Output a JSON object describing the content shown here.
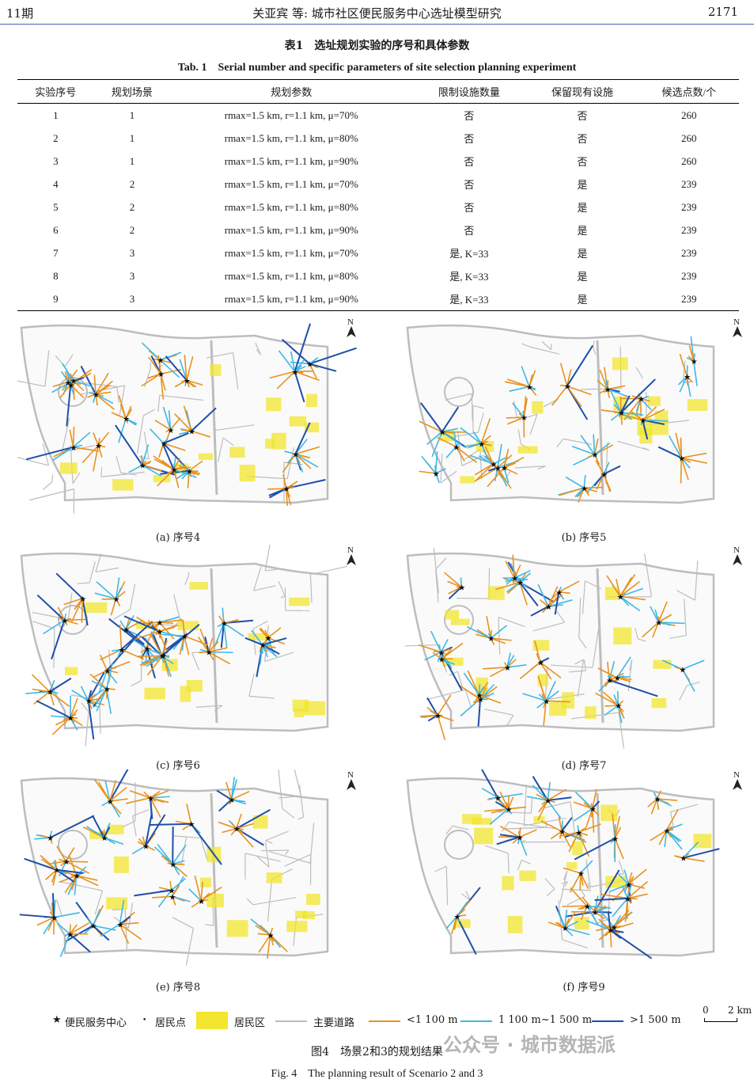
{
  "header": {
    "issue": "11期",
    "title": "关亚宾 等: 城市社区便民服务中心选址模型研究",
    "page": "2171"
  },
  "table": {
    "caption_zh": "表1　选址规划实验的序号和具体参数",
    "caption_en": "Tab. 1　Serial number and specific parameters of site selection planning experiment",
    "headers": [
      "实验序号",
      "规划场景",
      "规划参数",
      "限制设施数量",
      "保留现有设施",
      "候选点数/个"
    ],
    "rows": [
      {
        "id": "1",
        "scene": "1",
        "params": "rmax=1.5 km, r=1.1 km, μ=70%",
        "limit": "否",
        "keep": "否",
        "count": "260"
      },
      {
        "id": "2",
        "scene": "1",
        "params": "rmax=1.5 km, r=1.1 km, μ=80%",
        "limit": "否",
        "keep": "否",
        "count": "260"
      },
      {
        "id": "3",
        "scene": "1",
        "params": "rmax=1.5 km, r=1.1 km, μ=90%",
        "limit": "否",
        "keep": "否",
        "count": "260"
      },
      {
        "id": "4",
        "scene": "2",
        "params": "rmax=1.5 km, r=1.1 km, μ=70%",
        "limit": "否",
        "keep": "是",
        "count": "239"
      },
      {
        "id": "5",
        "scene": "2",
        "params": "rmax=1.5 km, r=1.1 km, μ=80%",
        "limit": "否",
        "keep": "是",
        "count": "239"
      },
      {
        "id": "6",
        "scene": "2",
        "params": "rmax=1.5 km, r=1.1 km, μ=90%",
        "limit": "否",
        "keep": "是",
        "count": "239"
      },
      {
        "id": "7",
        "scene": "3",
        "params": "rmax=1.5 km, r=1.1 km, μ=70%",
        "limit": "是, K=33",
        "keep": "是",
        "count": "239"
      },
      {
        "id": "8",
        "scene": "3",
        "params": "rmax=1.5 km, r=1.1 km, μ=80%",
        "limit": "是, K=33",
        "keep": "是",
        "count": "239"
      },
      {
        "id": "9",
        "scene": "3",
        "params": "rmax=1.5 km, r=1.1 km, μ=90%",
        "limit": "是, K=33",
        "keep": "是",
        "count": "239"
      }
    ]
  },
  "maps": {
    "north_label": "N",
    "panels": [
      {
        "label": "(a) 序号4"
      },
      {
        "label": "(b) 序号5"
      },
      {
        "label": "(c) 序号6"
      },
      {
        "label": "(d) 序号7"
      },
      {
        "label": "(e) 序号8"
      },
      {
        "label": "(f) 序号9"
      }
    ]
  },
  "legend": {
    "center": "便民服务中心",
    "point": "居民点",
    "area": "居民区",
    "road": "主要道路",
    "short": "<1 100 m",
    "mid": "1 100 m~1 500 m",
    "long": ">1 500 m",
    "scale_0": "0",
    "scale_2": "2 km"
  },
  "colors": {
    "road": "#bdbdbd",
    "area": "#f2e62e",
    "short": "#e8921f",
    "mid": "#3fb8e6",
    "long": "#1f4fa8",
    "star": "#111111",
    "header_rule": "#3c6bb5"
  },
  "figure": {
    "caption_zh": "图4　场景2和3的规划结果",
    "caption_en": "Fig. 4　The planning result of Scenario 2 and 3"
  },
  "watermark": "公众号 · 城市数据派"
}
